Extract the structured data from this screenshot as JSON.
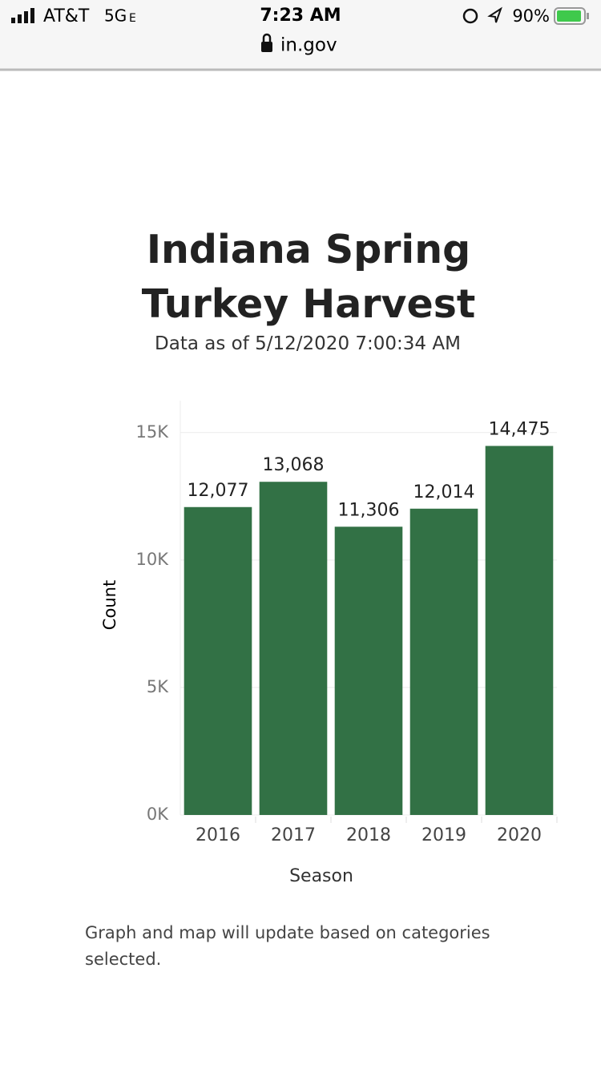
{
  "status_bar": {
    "carrier": "AT&T",
    "network": "5G",
    "network_suffix": "E",
    "time": "7:23 AM",
    "battery": "90%"
  },
  "url": "in.gov",
  "chart_data": {
    "type": "bar",
    "title": "Indiana Spring Turkey Harvest",
    "subtitle": "Data as of 5/12/2020 7:00:34 AM",
    "x_label": "Season",
    "y_label": "Count",
    "categories": [
      "2016",
      "2017",
      "2018",
      "2019",
      "2020"
    ],
    "values": [
      12077,
      13068,
      11306,
      12014,
      14475
    ],
    "value_labels": [
      "12,077",
      "13,068",
      "11,306",
      "12,014",
      "14,475"
    ],
    "color": "#327145",
    "ylim": [
      0,
      16250
    ],
    "yticks": [
      {
        "value": 0,
        "label": "0K"
      },
      {
        "value": 5000,
        "label": "5K"
      },
      {
        "value": 10000,
        "label": "10K"
      },
      {
        "value": 15000,
        "label": "15K"
      }
    ],
    "grid": true
  },
  "note": "Graph and map will update based on categories selected."
}
